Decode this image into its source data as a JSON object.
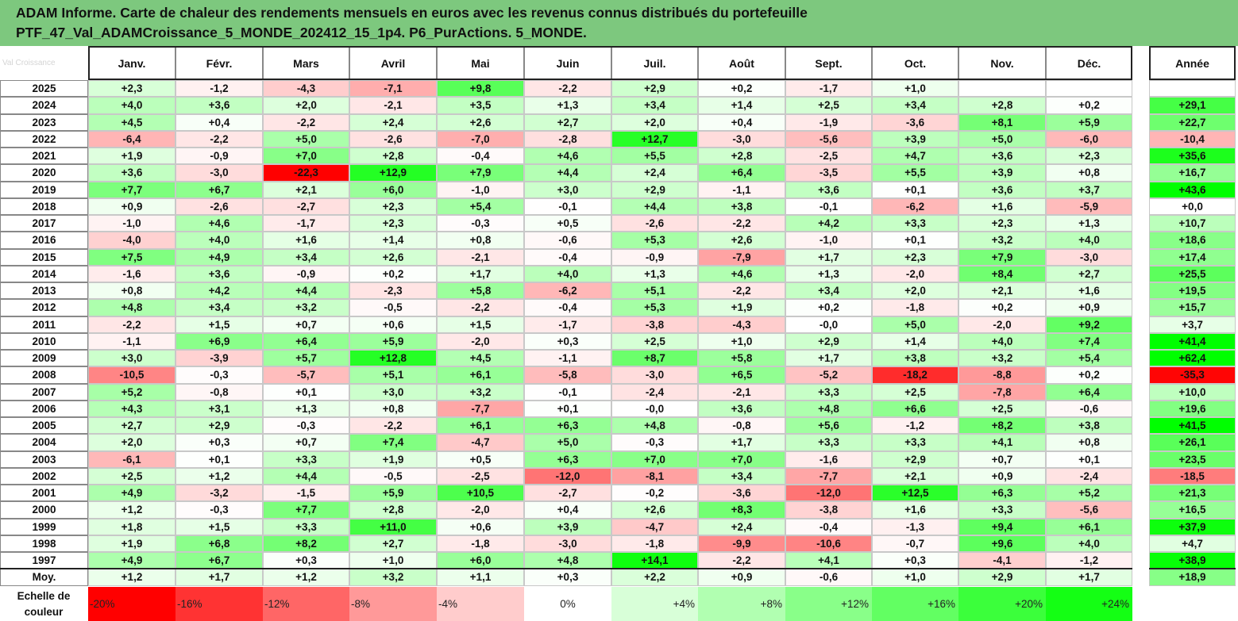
{
  "title": {
    "line1": "ADAM Informe. Carte de chaleur des rendements mensuels en euros avec les revenus connus distribués du portefeuille",
    "line2": "PTF_47_Val_ADAMCroissance_5_MONDE_202412_15_1p4. P6_PurActions. 5_MONDE."
  },
  "watermark": "Val Croissance",
  "chart_data": {
    "type": "heatmap",
    "columns": [
      "Janv.",
      "Févr.",
      "Mars",
      "Avril",
      "Mai",
      "Juin",
      "Juil.",
      "Août",
      "Sept.",
      "Oct.",
      "Nov.",
      "Déc."
    ],
    "annual_column": "Année",
    "rows": [
      {
        "year": "2025",
        "months": [
          "+2,3",
          "-1,2",
          "-4,3",
          "-7,1",
          "+9,8",
          "-2,2",
          "+2,9",
          "+0,2",
          "-1,7",
          "+1,0",
          "",
          ""
        ],
        "annual": ""
      },
      {
        "year": "2024",
        "months": [
          "+4,0",
          "+3,6",
          "+2,0",
          "-2,1",
          "+3,5",
          "+1,3",
          "+3,4",
          "+1,4",
          "+2,5",
          "+3,4",
          "+2,8",
          "+0,2"
        ],
        "annual": "+29,1"
      },
      {
        "year": "2023",
        "months": [
          "+4,5",
          "+0,4",
          "-2,2",
          "+2,4",
          "+2,6",
          "+2,7",
          "+2,0",
          "+0,4",
          "-1,9",
          "-3,6",
          "+8,1",
          "+5,9"
        ],
        "annual": "+22,7"
      },
      {
        "year": "2022",
        "months": [
          "-6,4",
          "-2,2",
          "+5,0",
          "-2,6",
          "-7,0",
          "-2,8",
          "+12,7",
          "-3,0",
          "-5,6",
          "+3,9",
          "+5,0",
          "-6,0"
        ],
        "annual": "-10,4"
      },
      {
        "year": "2021",
        "months": [
          "+1,9",
          "-0,9",
          "+7,0",
          "+2,8",
          "-0,4",
          "+4,6",
          "+5,5",
          "+2,8",
          "-2,5",
          "+4,7",
          "+3,6",
          "+2,3"
        ],
        "annual": "+35,6"
      },
      {
        "year": "2020",
        "months": [
          "+3,6",
          "-3,0",
          "-22,3",
          "+12,9",
          "+7,9",
          "+4,4",
          "+2,4",
          "+6,4",
          "-3,5",
          "+5,5",
          "+3,9",
          "+0,8"
        ],
        "annual": "+16,7"
      },
      {
        "year": "2019",
        "months": [
          "+7,7",
          "+6,7",
          "+2,1",
          "+6,0",
          "-1,0",
          "+3,0",
          "+2,9",
          "-1,1",
          "+3,6",
          "+0,1",
          "+3,6",
          "+3,7"
        ],
        "annual": "+43,6"
      },
      {
        "year": "2018",
        "months": [
          "+0,9",
          "-2,6",
          "-2,7",
          "+2,3",
          "+5,4",
          "-0,1",
          "+4,4",
          "+3,8",
          "-0,1",
          "-6,2",
          "+1,6",
          "-5,9"
        ],
        "annual": "+0,0"
      },
      {
        "year": "2017",
        "months": [
          "-1,0",
          "+4,6",
          "-1,7",
          "+2,3",
          "-0,3",
          "+0,5",
          "-2,6",
          "-2,2",
          "+4,2",
          "+3,3",
          "+2,3",
          "+1,3"
        ],
        "annual": "+10,7"
      },
      {
        "year": "2016",
        "months": [
          "-4,0",
          "+4,0",
          "+1,6",
          "+1,4",
          "+0,8",
          "-0,6",
          "+5,3",
          "+2,6",
          "-1,0",
          "+0,1",
          "+3,2",
          "+4,0"
        ],
        "annual": "+18,6"
      },
      {
        "year": "2015",
        "months": [
          "+7,5",
          "+4,9",
          "+3,4",
          "+2,6",
          "-2,1",
          "-0,4",
          "-0,9",
          "-7,9",
          "+1,7",
          "+2,3",
          "+7,9",
          "-3,0"
        ],
        "annual": "+17,4"
      },
      {
        "year": "2014",
        "months": [
          "-1,6",
          "+3,6",
          "-0,9",
          "+0,2",
          "+1,7",
          "+4,0",
          "+1,3",
          "+4,6",
          "+1,3",
          "-2,0",
          "+8,4",
          "+2,7"
        ],
        "annual": "+25,5"
      },
      {
        "year": "2013",
        "months": [
          "+0,8",
          "+4,2",
          "+4,4",
          "-2,3",
          "+5,8",
          "-6,2",
          "+5,1",
          "-2,2",
          "+3,4",
          "+2,0",
          "+2,1",
          "+1,6"
        ],
        "annual": "+19,5"
      },
      {
        "year": "2012",
        "months": [
          "+4,8",
          "+3,4",
          "+3,2",
          "-0,5",
          "-2,2",
          "-0,4",
          "+5,3",
          "+1,9",
          "+0,2",
          "-1,8",
          "+0,2",
          "+0,9"
        ],
        "annual": "+15,7"
      },
      {
        "year": "2011",
        "months": [
          "-2,2",
          "+1,5",
          "+0,7",
          "+0,6",
          "+1,5",
          "-1,7",
          "-3,8",
          "-4,3",
          "-0,0",
          "+5,0",
          "-2,0",
          "+9,2"
        ],
        "annual": "+3,7"
      },
      {
        "year": "2010",
        "months": [
          "-1,1",
          "+6,9",
          "+6,4",
          "+5,9",
          "-2,0",
          "+0,3",
          "+2,5",
          "+1,0",
          "+2,9",
          "+1,4",
          "+4,0",
          "+7,4"
        ],
        "annual": "+41,4"
      },
      {
        "year": "2009",
        "months": [
          "+3,0",
          "-3,9",
          "+5,7",
          "+12,8",
          "+4,5",
          "-1,1",
          "+8,7",
          "+5,8",
          "+1,7",
          "+3,8",
          "+3,2",
          "+5,4"
        ],
        "annual": "+62,4"
      },
      {
        "year": "2008",
        "months": [
          "-10,5",
          "-0,3",
          "-5,7",
          "+5,1",
          "+6,1",
          "-5,8",
          "-3,0",
          "+6,5",
          "-5,2",
          "-18,2",
          "-8,8",
          "+0,2"
        ],
        "annual": "-35,3"
      },
      {
        "year": "2007",
        "months": [
          "+5,2",
          "-0,8",
          "+0,1",
          "+3,0",
          "+3,2",
          "-0,1",
          "-2,4",
          "-2,1",
          "+3,3",
          "+2,5",
          "-7,8",
          "+6,4"
        ],
        "annual": "+10,0"
      },
      {
        "year": "2006",
        "months": [
          "+4,3",
          "+3,1",
          "+1,3",
          "+0,8",
          "-7,7",
          "+0,1",
          "-0,0",
          "+3,6",
          "+4,8",
          "+6,6",
          "+2,5",
          "-0,6"
        ],
        "annual": "+19,6"
      },
      {
        "year": "2005",
        "months": [
          "+2,7",
          "+2,9",
          "-0,3",
          "-2,2",
          "+6,1",
          "+6,3",
          "+4,8",
          "-0,8",
          "+5,6",
          "-1,2",
          "+8,2",
          "+3,8"
        ],
        "annual": "+41,5"
      },
      {
        "year": "2004",
        "months": [
          "+2,0",
          "+0,3",
          "+0,7",
          "+7,4",
          "-4,7",
          "+5,0",
          "-0,3",
          "+1,7",
          "+3,3",
          "+3,3",
          "+4,1",
          "+0,8"
        ],
        "annual": "+26,1"
      },
      {
        "year": "2003",
        "months": [
          "-6,1",
          "+0,1",
          "+3,3",
          "+1,9",
          "+0,5",
          "+6,3",
          "+7,0",
          "+7,0",
          "-1,6",
          "+2,9",
          "+0,7",
          "+0,1"
        ],
        "annual": "+23,5"
      },
      {
        "year": "2002",
        "months": [
          "+2,5",
          "+1,2",
          "+4,4",
          "-0,5",
          "-2,5",
          "-12,0",
          "-8,1",
          "+3,4",
          "-7,7",
          "+2,1",
          "+0,9",
          "-2,4"
        ],
        "annual": "-18,5"
      },
      {
        "year": "2001",
        "months": [
          "+4,9",
          "-3,2",
          "-1,5",
          "+5,9",
          "+10,5",
          "-2,7",
          "-0,2",
          "-3,6",
          "-12,0",
          "+12,5",
          "+6,3",
          "+5,2"
        ],
        "annual": "+21,3"
      },
      {
        "year": "2000",
        "months": [
          "+1,2",
          "-0,3",
          "+7,7",
          "+2,8",
          "-2,0",
          "+0,4",
          "+2,6",
          "+8,3",
          "-3,8",
          "+1,6",
          "+3,3",
          "-5,6"
        ],
        "annual": "+16,5"
      },
      {
        "year": "1999",
        "months": [
          "+1,8",
          "+1,5",
          "+3,3",
          "+11,0",
          "+0,6",
          "+3,9",
          "-4,7",
          "+2,4",
          "-0,4",
          "-1,3",
          "+9,4",
          "+6,1"
        ],
        "annual": "+37,9"
      },
      {
        "year": "1998",
        "months": [
          "+1,9",
          "+6,8",
          "+8,2",
          "+2,7",
          "-1,8",
          "-3,0",
          "-1,8",
          "-9,9",
          "-10,6",
          "-0,7",
          "+9,6",
          "+4,0"
        ],
        "annual": "+4,7"
      },
      {
        "year": "1997",
        "months": [
          "+4,9",
          "+6,7",
          "+0,3",
          "+1,0",
          "+6,0",
          "+4,8",
          "+14,1",
          "-2,2",
          "+4,1",
          "+0,3",
          "-4,1",
          "-1,2"
        ],
        "annual": "+38,9"
      }
    ],
    "average": {
      "label": "Moy.",
      "months": [
        "+1,2",
        "+1,7",
        "+1,2",
        "+3,2",
        "+1,1",
        "+0,3",
        "+2,2",
        "+0,9",
        "-0,6",
        "+1,0",
        "+2,9",
        "+1,7"
      ],
      "annual": "+18,9"
    },
    "color_scale": {
      "label_line1": "Echelle de",
      "label_line2": "couleur",
      "steps": [
        "-20%",
        "-16%",
        "-12%",
        "-8%",
        "-4%",
        "0%",
        "+4%",
        "+8%",
        "+12%",
        "+16%",
        "+20%",
        "+24%"
      ],
      "step_values": [
        -20,
        -16,
        -12,
        -8,
        -4,
        0,
        4,
        8,
        12,
        16,
        20,
        24
      ]
    },
    "colors": {
      "negative_max": "#ff0000",
      "neutral": "#ffffff",
      "positive_max": "#00ff00",
      "header_bg": "#7dc87e"
    }
  }
}
